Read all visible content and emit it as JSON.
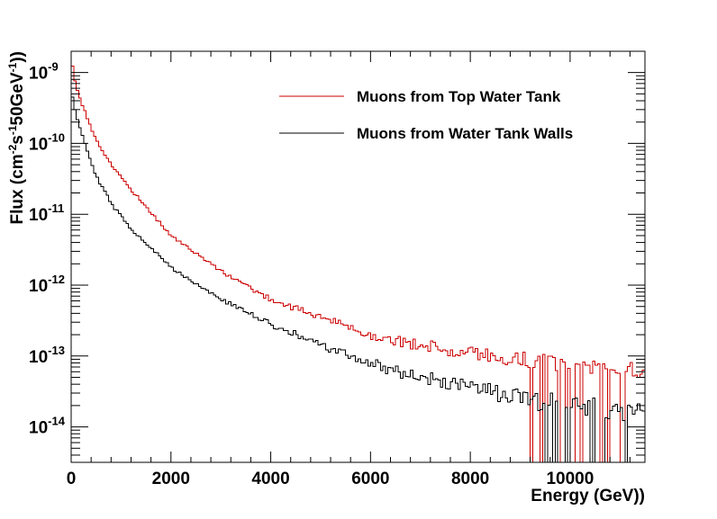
{
  "chart_data": {
    "type": "line",
    "title": "",
    "xlabel": "Energy (GeV))",
    "ylabel": "Flux (cm⁻²s⁻¹ 50GeV⁻¹))",
    "ylabel_parts": {
      "prefix": "Flux (cm",
      "exp1": "-2",
      "mid1": "s",
      "exp2": "-1",
      "mid2": "50GeV",
      "exp3": "-1",
      "suffix": "))"
    },
    "xlim": [
      0,
      11500
    ],
    "ylim_log10": [
      -14.5,
      -8.7
    ],
    "y_scale": "log",
    "xticks": [
      0,
      2000,
      4000,
      6000,
      8000,
      10000
    ],
    "xtick_labels": [
      "0",
      "2000",
      "4000",
      "6000",
      "8000",
      "10000"
    ],
    "ytick_labels": [
      {
        "base": "10",
        "exp": "-9"
      },
      {
        "base": "10",
        "exp": "-10"
      },
      {
        "base": "10",
        "exp": "-11"
      },
      {
        "base": "10",
        "exp": "-12"
      },
      {
        "base": "10",
        "exp": "-13"
      },
      {
        "base": "10",
        "exp": "-14"
      }
    ],
    "ytick_exponents": [
      -9,
      -10,
      -11,
      -12,
      -13,
      -14
    ],
    "legend_position": "top-right",
    "bin_width_gev": 50,
    "series": [
      {
        "name": "Muons from Top Water Tank",
        "color": "#cc0000",
        "anchors_energy_gev": [
          0,
          100,
          300,
          500,
          800,
          1200,
          2000,
          3000,
          4000,
          5000,
          6000,
          7000,
          8000,
          9000,
          10000,
          11500
        ],
        "anchors_log10_flux": [
          -8.82,
          -9.2,
          -9.6,
          -9.95,
          -10.3,
          -10.65,
          -11.3,
          -11.8,
          -12.2,
          -12.45,
          -12.7,
          -12.85,
          -12.95,
          -13.05,
          -13.1,
          -13.2
        ],
        "noise_log10": 0.12,
        "seed": 17
      },
      {
        "name": "Muons from Water Tank Walls",
        "color": "#000000",
        "anchors_energy_gev": [
          0,
          100,
          300,
          500,
          800,
          1200,
          2000,
          3000,
          4000,
          5000,
          6000,
          7000,
          8000,
          9000,
          10000,
          11500
        ],
        "anchors_log10_flux": [
          -9.25,
          -9.6,
          -10.05,
          -10.45,
          -10.85,
          -11.2,
          -11.75,
          -12.2,
          -12.55,
          -12.85,
          -13.1,
          -13.3,
          -13.45,
          -13.6,
          -13.7,
          -13.8
        ],
        "noise_log10": 0.14,
        "seed": 29
      }
    ]
  }
}
